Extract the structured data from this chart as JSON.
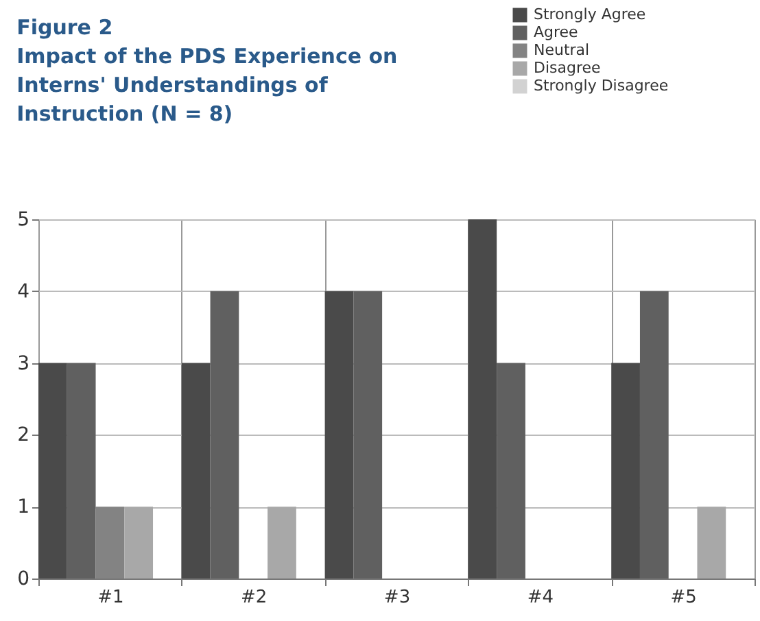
{
  "chart_data": {
    "type": "bar",
    "title": "Figure 2",
    "subtitle": "Impact of the PDS Experience on Interns' Understandings of Instruction (N = 8)",
    "categories": [
      "#1",
      "#2",
      "#3",
      "#4",
      "#5"
    ],
    "series": [
      {
        "name": "Strongly Agree",
        "color": "#4a4a4a",
        "values": [
          3,
          3,
          4,
          5,
          3
        ]
      },
      {
        "name": "Agree",
        "color": "#606060",
        "values": [
          3,
          4,
          4,
          3,
          4
        ]
      },
      {
        "name": "Neutral",
        "color": "#838383",
        "values": [
          1,
          0,
          0,
          0,
          0
        ]
      },
      {
        "name": "Disagree",
        "color": "#a8a8a8",
        "values": [
          1,
          1,
          0,
          0,
          1
        ]
      },
      {
        "name": "Strongly Disagree",
        "color": "#d2d2d2",
        "values": [
          0,
          0,
          0,
          0,
          0
        ]
      }
    ],
    "ylim": [
      0,
      5
    ],
    "yticks": [
      0,
      1,
      2,
      3,
      4,
      5
    ],
    "grid": true,
    "legend": "top right"
  }
}
